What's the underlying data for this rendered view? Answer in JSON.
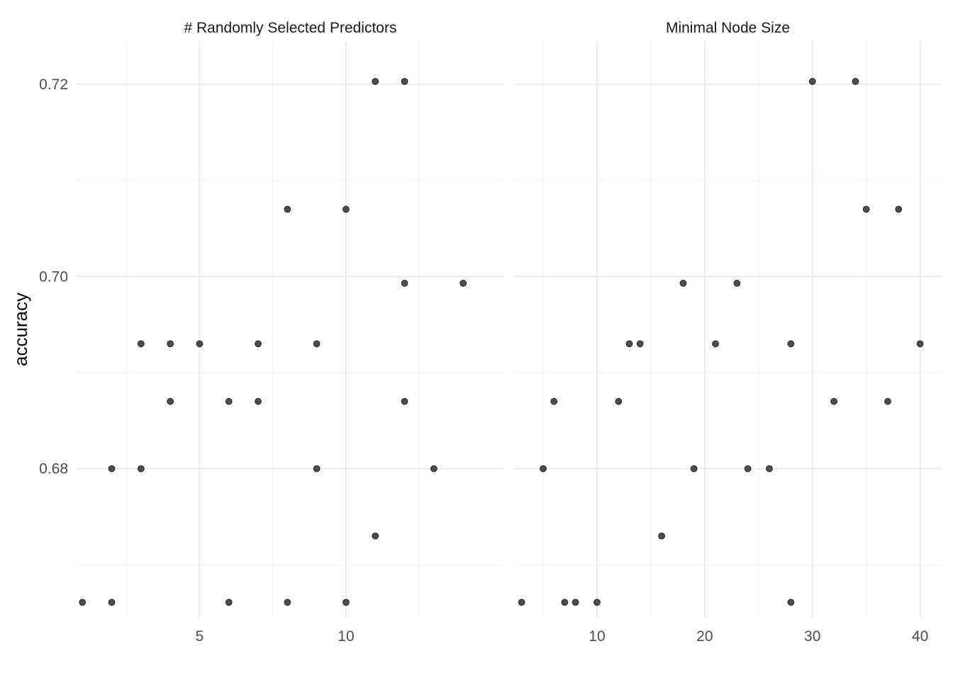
{
  "chart_data": {
    "type": "scatter",
    "ylabel": "accuracy",
    "xlabel": "",
    "grid": true,
    "ylim": [
      0.6645,
      0.7245
    ],
    "y_ticks": [
      0.68,
      0.7,
      0.72
    ],
    "y_tick_labels": [
      "0.68",
      "0.70",
      "0.72"
    ],
    "facets": [
      {
        "strip": "# Randomly Selected Predictors",
        "xlim": [
          0.8,
          15.4
        ],
        "x_ticks": [
          5,
          10
        ],
        "x_tick_labels": [
          "5",
          "10"
        ],
        "x_minor": [
          2.5,
          7.5,
          12.5
        ],
        "points": [
          {
            "x": 1,
            "y": 0.6661
          },
          {
            "x": 2,
            "y": 0.6661
          },
          {
            "x": 2,
            "y": 0.68
          },
          {
            "x": 3,
            "y": 0.68
          },
          {
            "x": 3,
            "y": 0.693
          },
          {
            "x": 4,
            "y": 0.693
          },
          {
            "x": 4,
            "y": 0.687
          },
          {
            "x": 5,
            "y": 0.693
          },
          {
            "x": 6,
            "y": 0.687
          },
          {
            "x": 6,
            "y": 0.6661
          },
          {
            "x": 7,
            "y": 0.693
          },
          {
            "x": 7,
            "y": 0.687
          },
          {
            "x": 8,
            "y": 0.707
          },
          {
            "x": 8,
            "y": 0.6661
          },
          {
            "x": 9,
            "y": 0.693
          },
          {
            "x": 9,
            "y": 0.68
          },
          {
            "x": 10,
            "y": 0.707
          },
          {
            "x": 10,
            "y": 0.6661
          },
          {
            "x": 11,
            "y": 0.7203
          },
          {
            "x": 11,
            "y": 0.673
          },
          {
            "x": 12,
            "y": 0.7203
          },
          {
            "x": 12,
            "y": 0.6993
          },
          {
            "x": 12,
            "y": 0.687
          },
          {
            "x": 13,
            "y": 0.68
          },
          {
            "x": 14,
            "y": 0.6993
          }
        ]
      },
      {
        "strip": "Minimal Node Size",
        "xlim": [
          2.3,
          42.0
        ],
        "x_ticks": [
          10,
          20,
          30,
          40
        ],
        "x_tick_labels": [
          "10",
          "20",
          "30",
          "40"
        ],
        "x_minor": [
          5,
          15,
          25,
          35
        ],
        "points": [
          {
            "x": 3,
            "y": 0.6661
          },
          {
            "x": 5,
            "y": 0.68
          },
          {
            "x": 6,
            "y": 0.687
          },
          {
            "x": 7,
            "y": 0.6661
          },
          {
            "x": 8,
            "y": 0.6661
          },
          {
            "x": 10,
            "y": 0.6661
          },
          {
            "x": 12,
            "y": 0.687
          },
          {
            "x": 13,
            "y": 0.693
          },
          {
            "x": 14,
            "y": 0.693
          },
          {
            "x": 16,
            "y": 0.673
          },
          {
            "x": 18,
            "y": 0.6993
          },
          {
            "x": 19,
            "y": 0.68
          },
          {
            "x": 21,
            "y": 0.693
          },
          {
            "x": 23,
            "y": 0.6993
          },
          {
            "x": 24,
            "y": 0.68
          },
          {
            "x": 26,
            "y": 0.68
          },
          {
            "x": 28,
            "y": 0.693
          },
          {
            "x": 28,
            "y": 0.6661
          },
          {
            "x": 30,
            "y": 0.7203
          },
          {
            "x": 32,
            "y": 0.687
          },
          {
            "x": 34,
            "y": 0.7203
          },
          {
            "x": 35,
            "y": 0.707
          },
          {
            "x": 37,
            "y": 0.687
          },
          {
            "x": 38,
            "y": 0.707
          },
          {
            "x": 40,
            "y": 0.693
          }
        ]
      }
    ]
  }
}
